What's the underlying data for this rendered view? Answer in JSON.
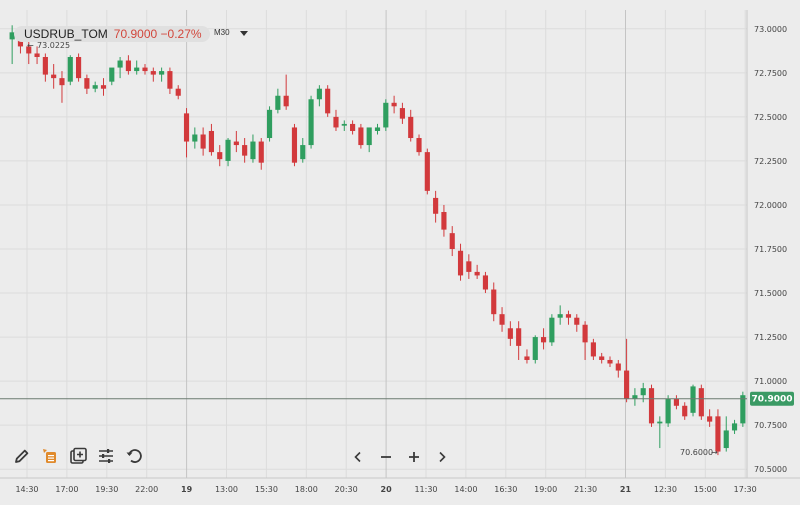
{
  "header": {
    "symbol": "USDRUB_TOM",
    "price_change": "70.9000 −0.27%",
    "timeframe": "M30"
  },
  "annotations": {
    "high_label": "73.0225",
    "low_label": "70.6000",
    "last_price_label": "70.9000"
  },
  "toolbar": {
    "items": [
      "pencil-icon",
      "template-icon",
      "add-indicator-icon",
      "settings-sliders-icon",
      "undo-icon"
    ]
  },
  "nav": {
    "items": [
      "scroll-left-icon",
      "zoom-out-icon",
      "zoom-in-icon",
      "scroll-right-icon"
    ]
  },
  "colors": {
    "up": "#2f9e5f",
    "down": "#d2393c",
    "price_tag": "#3a9a64",
    "background": "#ececec"
  },
  "chart_data": {
    "type": "candlestick",
    "y_axis": {
      "min": 70.45,
      "max": 73.05,
      "ticks": [
        "73.0000",
        "72.7500",
        "72.5000",
        "72.2500",
        "72.0000",
        "71.7500",
        "71.5000",
        "71.2500",
        "71.0000",
        "70.7500",
        "70.5000"
      ]
    },
    "x_axis": {
      "tick_labels": [
        "14:30",
        "17:00",
        "19:30",
        "22:00",
        "19",
        "13:00",
        "15:30",
        "18:00",
        "20:30",
        "20",
        "11:30",
        "14:00",
        "16:30",
        "19:00",
        "21:30",
        "21",
        "12:30",
        "15:00",
        "17:30"
      ]
    },
    "grid": true,
    "last_price": 70.9,
    "candles": [
      [
        72.94,
        73.02,
        72.98,
        72.8
      ],
      [
        72.98,
        73.0,
        72.9,
        72.86
      ],
      [
        72.9,
        72.94,
        72.86,
        72.8
      ],
      [
        72.86,
        72.9,
        72.84,
        72.8
      ],
      [
        72.84,
        72.86,
        72.74,
        72.7
      ],
      [
        72.74,
        72.8,
        72.72,
        72.66
      ],
      [
        72.72,
        72.76,
        72.68,
        72.58
      ],
      [
        72.7,
        72.85,
        72.84,
        72.68
      ],
      [
        72.84,
        72.86,
        72.72,
        72.7
      ],
      [
        72.72,
        72.74,
        72.66,
        72.63
      ],
      [
        72.66,
        72.7,
        72.68,
        72.64
      ],
      [
        72.68,
        72.72,
        72.66,
        72.62
      ],
      [
        72.7,
        72.76,
        72.78,
        72.68
      ],
      [
        72.78,
        72.84,
        72.82,
        72.72
      ],
      [
        72.82,
        72.85,
        72.76,
        72.74
      ],
      [
        72.76,
        72.82,
        72.78,
        72.74
      ],
      [
        72.78,
        72.8,
        72.76,
        72.74
      ],
      [
        72.76,
        72.78,
        72.74,
        72.7
      ],
      [
        72.74,
        72.78,
        72.76,
        72.7
      ],
      [
        72.76,
        72.78,
        72.66,
        72.63
      ],
      [
        72.66,
        72.68,
        72.62,
        72.6
      ],
      [
        72.52,
        72.55,
        72.36,
        72.27
      ],
      [
        72.36,
        72.44,
        72.4,
        72.32
      ],
      [
        72.4,
        72.44,
        72.32,
        72.28
      ],
      [
        72.42,
        72.46,
        72.3,
        72.28
      ],
      [
        72.3,
        72.34,
        72.26,
        72.22
      ],
      [
        72.25,
        72.38,
        72.37,
        72.22
      ],
      [
        72.36,
        72.42,
        72.34,
        72.3
      ],
      [
        72.34,
        72.38,
        72.28,
        72.24
      ],
      [
        72.26,
        72.4,
        72.36,
        72.24
      ],
      [
        72.36,
        72.38,
        72.24,
        72.2
      ],
      [
        72.38,
        72.56,
        72.54,
        72.36
      ],
      [
        72.54,
        72.66,
        72.62,
        72.52
      ],
      [
        72.62,
        72.74,
        72.56,
        72.54
      ],
      [
        72.44,
        72.46,
        72.24,
        72.22
      ],
      [
        72.26,
        72.38,
        72.34,
        72.24
      ],
      [
        72.34,
        72.62,
        72.6,
        72.32
      ],
      [
        72.6,
        72.68,
        72.66,
        72.56
      ],
      [
        72.66,
        72.68,
        72.52,
        72.5
      ],
      [
        72.5,
        72.54,
        72.44,
        72.42
      ],
      [
        72.45,
        72.48,
        72.46,
        72.42
      ],
      [
        72.46,
        72.48,
        72.42,
        72.4
      ],
      [
        72.44,
        72.46,
        72.34,
        72.32
      ],
      [
        72.34,
        72.4,
        72.44,
        72.3
      ],
      [
        72.42,
        72.46,
        72.44,
        72.4
      ],
      [
        72.44,
        72.6,
        72.58,
        72.42
      ],
      [
        72.58,
        72.62,
        72.56,
        72.52
      ],
      [
        72.55,
        72.58,
        72.49,
        72.46
      ],
      [
        72.5,
        72.54,
        72.38,
        72.36
      ],
      [
        72.38,
        72.4,
        72.3,
        72.28
      ],
      [
        72.3,
        72.32,
        72.08,
        72.06
      ],
      [
        72.04,
        72.08,
        71.95,
        71.9
      ],
      [
        71.96,
        72.0,
        71.86,
        71.82
      ],
      [
        71.84,
        71.88,
        71.75,
        71.71
      ],
      [
        71.74,
        71.78,
        71.6,
        71.57
      ],
      [
        71.68,
        71.72,
        71.62,
        71.58
      ],
      [
        71.62,
        71.66,
        71.6,
        71.58
      ],
      [
        71.6,
        71.62,
        71.52,
        71.5
      ],
      [
        71.52,
        71.56,
        71.38,
        71.34
      ],
      [
        71.38,
        71.42,
        71.32,
        71.28
      ],
      [
        71.3,
        71.34,
        71.24,
        71.2
      ],
      [
        71.3,
        71.34,
        71.2,
        71.12
      ],
      [
        71.14,
        71.18,
        71.12,
        71.1
      ],
      [
        71.12,
        71.26,
        71.25,
        71.1
      ],
      [
        71.25,
        71.3,
        71.22,
        71.18
      ],
      [
        71.22,
        71.38,
        71.36,
        71.2
      ],
      [
        71.36,
        71.43,
        71.38,
        71.32
      ],
      [
        71.38,
        71.4,
        71.36,
        71.32
      ],
      [
        71.36,
        71.38,
        71.32,
        71.28
      ],
      [
        71.32,
        71.34,
        71.22,
        71.12
      ],
      [
        71.22,
        71.24,
        71.14,
        71.12
      ],
      [
        71.14,
        71.16,
        71.12,
        71.1
      ],
      [
        71.12,
        71.14,
        71.1,
        71.08
      ],
      [
        71.1,
        71.12,
        71.06,
        71.02
      ],
      [
        71.06,
        71.24,
        70.9,
        70.88
      ],
      [
        70.9,
        70.96,
        70.92,
        70.86
      ],
      [
        70.92,
        70.99,
        70.96,
        70.88
      ],
      [
        70.96,
        70.98,
        70.76,
        70.74
      ],
      [
        70.76,
        70.8,
        70.77,
        70.62
      ],
      [
        70.76,
        70.92,
        70.9,
        70.74
      ],
      [
        70.9,
        70.92,
        70.86,
        70.84
      ],
      [
        70.86,
        70.88,
        70.8,
        70.78
      ],
      [
        70.82,
        70.98,
        70.97,
        70.8
      ],
      [
        70.96,
        70.98,
        70.8,
        70.78
      ],
      [
        70.8,
        70.84,
        70.77,
        70.74
      ],
      [
        70.8,
        70.84,
        70.6,
        70.58
      ],
      [
        70.62,
        70.8,
        70.72,
        70.6
      ],
      [
        70.72,
        70.78,
        70.76,
        70.7
      ],
      [
        70.76,
        70.94,
        70.92,
        70.74
      ]
    ]
  }
}
